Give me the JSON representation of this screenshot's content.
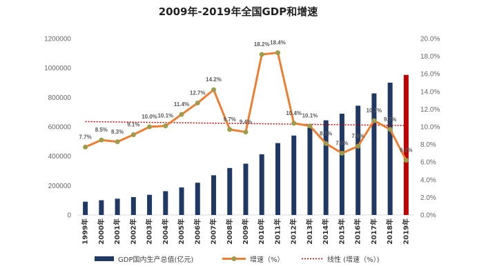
{
  "chart_data": {
    "type": "bar",
    "title": "2009年-2019年全国GDP和增速",
    "categories": [
      "1999年",
      "2000年",
      "2001年",
      "2002年",
      "2003年",
      "2004年",
      "2005年",
      "2006年",
      "2007年",
      "2008年",
      "2009年",
      "2010年",
      "2011年",
      "2012年",
      "2013年",
      "2014年",
      "2015年",
      "2016年",
      "2017年",
      "2018年",
      "2019年"
    ],
    "series": [
      {
        "name": "GDP国内生产总值(亿元)",
        "type": "bar",
        "axis": "left",
        "color": "#1f3864",
        "highlight_color": "#c00000",
        "highlight_index": 20,
        "values": [
          90564,
          100280,
          110863,
          121717,
          137422,
          161840,
          187319,
          219439,
          270232,
          319516,
          349081,
          413030,
          489301,
          540367,
          595244,
          643974,
          689052,
          743586,
          827122,
          900309,
          953000
        ]
      },
      {
        "name": "增速（%）",
        "type": "line",
        "axis": "right",
        "color": "#ed7d31",
        "marker_color": "#9c9c4a",
        "values": [
          7.7,
          8.5,
          8.3,
          9.1,
          10.0,
          10.1,
          11.4,
          12.7,
          14.2,
          9.7,
          9.4,
          18.2,
          18.4,
          10.4,
          10.1,
          8.1,
          7.0,
          7.8,
          10.7,
          9.7,
          6.2
        ],
        "labels": [
          "7.7%",
          "8.5%",
          "8.3%",
          "9.1%",
          "10.0%",
          "10.1%",
          "11.4%",
          "12.7%",
          "14.2%",
          "9.7%",
          "9.4%",
          "18.2%",
          "18.4%",
          "10.4%",
          "10.1%",
          "8.1%",
          "7.0%",
          "7.8%",
          "10.7%",
          "9.7%",
          "6.2%"
        ]
      },
      {
        "name": "线性 (增速（%）)",
        "type": "trendline",
        "axis": "right",
        "color": "#c00000"
      }
    ],
    "y_left": {
      "ylim": [
        0,
        1200000
      ],
      "ticks": [
        "0",
        "200000",
        "400000",
        "600000",
        "800000",
        "1000000",
        "1200000"
      ]
    },
    "y_right": {
      "ylim": [
        0,
        20
      ],
      "ticks": [
        "0.0%",
        "2.0%",
        "4.0%",
        "6.0%",
        "8.0%",
        "10.0%",
        "12.0%",
        "14.0%",
        "16.0%",
        "18.0%",
        "20.0%"
      ]
    },
    "legend_position": "bottom",
    "grid": false
  },
  "legend": {
    "bar_label": "GDP国内生产总值(亿元)",
    "line_label": "增速（%）",
    "trend_label": "线性 (增速（%）)"
  }
}
